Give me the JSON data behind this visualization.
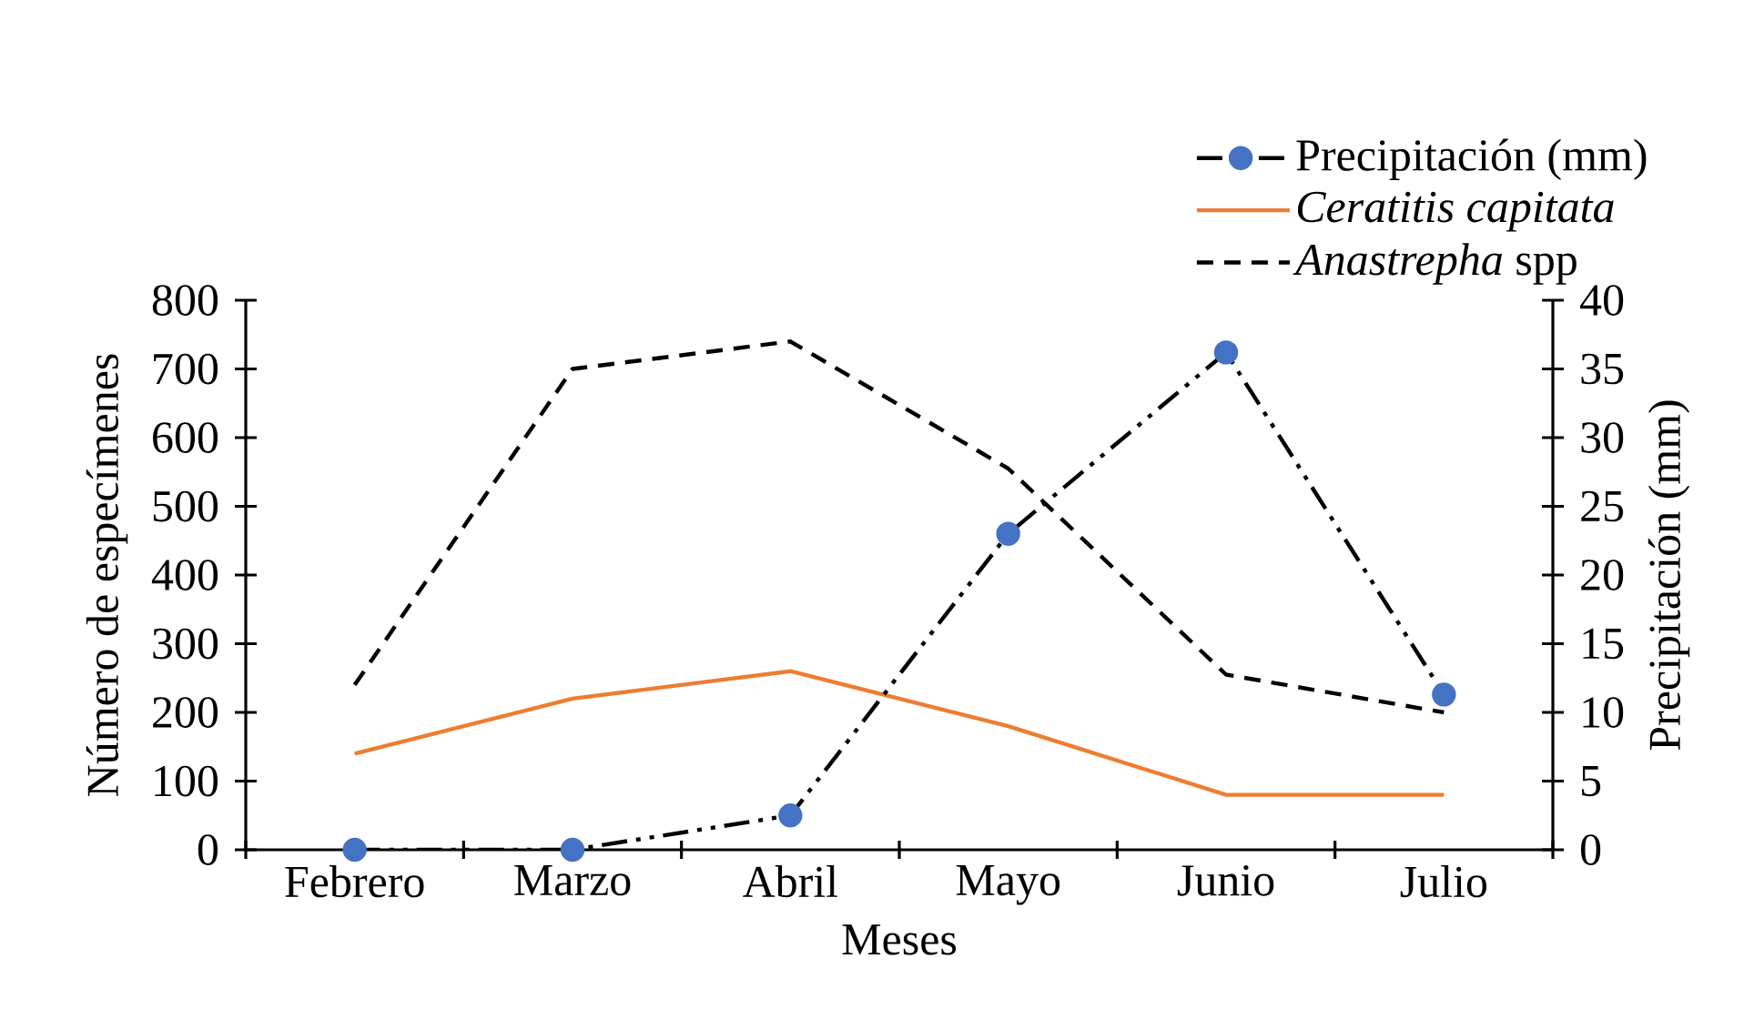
{
  "chart_data": {
    "type": "line",
    "xlabel": "Meses",
    "ylabel": "Número de especímenes",
    "y2label": "Precipitación (mm)",
    "categories": [
      "Febrero",
      "Marzo",
      "Abril",
      "Mayo",
      "Junio",
      "Julio"
    ],
    "series": [
      {
        "name": "Precipitación (mm)",
        "color": "#4472c4",
        "axis": "y2",
        "marker": "circle",
        "line_style": "dashdotdotted",
        "values": [
          0,
          0,
          2.5,
          23,
          36.2,
          11.3
        ]
      },
      {
        "name": "*Ceratitis capitata*",
        "color": "#ed7d31",
        "marker": "none",
        "line_style": "solid",
        "values": [
          140,
          220,
          260,
          180,
          80,
          80
        ]
      },
      {
        "name": "*Anastrepha* spp",
        "color": "#000000",
        "marker": "none",
        "line_style": "dashed",
        "values": [
          240,
          700,
          740,
          555,
          255,
          200
        ]
      }
    ],
    "ylim": [
      0,
      800
    ],
    "yticks": [
      0,
      100,
      200,
      300,
      400,
      500,
      600,
      700,
      800
    ],
    "y2lim": [
      0,
      40
    ],
    "y2ticks": [
      0,
      5,
      10,
      15,
      20,
      25,
      30,
      35,
      40
    ],
    "grid": false,
    "legend": "top right"
  }
}
